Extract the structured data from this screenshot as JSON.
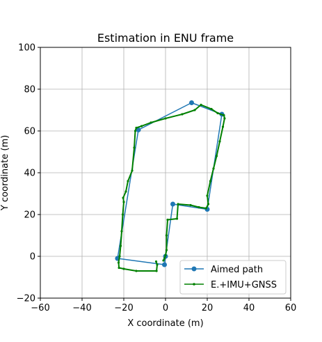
{
  "chart_data": {
    "type": "line",
    "title": "Estimation in ENU frame",
    "xlabel": "X coordinate (m)",
    "ylabel": "Y coordinate (m)",
    "xlim": [
      -60,
      60
    ],
    "ylim": [
      -20,
      100
    ],
    "xticks": [
      "−60",
      "−40",
      "−20",
      "0",
      "20",
      "40",
      "60"
    ],
    "yticks": [
      "−20",
      "0",
      "20",
      "40",
      "60",
      "80",
      "100"
    ],
    "xtick_values": [
      -60,
      -40,
      -20,
      0,
      20,
      40,
      60
    ],
    "ytick_values": [
      -20,
      0,
      20,
      40,
      60,
      80,
      100
    ],
    "grid": true,
    "legend_position": "lower-right",
    "series": [
      {
        "name": "Aimed path",
        "color": "#1f77b4",
        "marker": "circle",
        "points": [
          [
            -23,
            -1
          ],
          [
            -13,
            60.5
          ],
          [
            12.5,
            73.5
          ],
          [
            27,
            68
          ],
          [
            20,
            22.5
          ],
          [
            3.5,
            25
          ],
          [
            0,
            0
          ],
          [
            -0.5,
            -4
          ],
          [
            -23,
            -1
          ]
        ]
      },
      {
        "name": "E.+IMU+GNSS",
        "color": "#008000",
        "marker": "dot",
        "points": [
          [
            -4.5,
            -2.5
          ],
          [
            -4,
            -4
          ],
          [
            -4.3,
            -7
          ],
          [
            -14,
            -7
          ],
          [
            -20,
            -6
          ],
          [
            -22.3,
            -5.5
          ],
          [
            -22.5,
            -3
          ],
          [
            -22,
            0
          ],
          [
            -21.5,
            5
          ],
          [
            -21,
            12
          ],
          [
            -20.5,
            20
          ],
          [
            -20,
            26
          ],
          [
            -20.3,
            28
          ],
          [
            -19,
            31
          ],
          [
            -18,
            36
          ],
          [
            -16,
            41
          ],
          [
            -15,
            52
          ],
          [
            -14.5,
            60
          ],
          [
            -14,
            61.5
          ],
          [
            -11.5,
            62.3
          ],
          [
            -7,
            64
          ],
          [
            0,
            66
          ],
          [
            8,
            68
          ],
          [
            14,
            70
          ],
          [
            17,
            72.5
          ],
          [
            22,
            70.5
          ],
          [
            25,
            68.5
          ],
          [
            28,
            67.5
          ],
          [
            28.3,
            66
          ],
          [
            27.5,
            62
          ],
          [
            26,
            55
          ],
          [
            24.5,
            48
          ],
          [
            23,
            42
          ],
          [
            21.5,
            36
          ],
          [
            20,
            29
          ],
          [
            20.5,
            25
          ],
          [
            19.5,
            23
          ],
          [
            16,
            23.5
          ],
          [
            12,
            24.5
          ],
          [
            6,
            25
          ],
          [
            5.5,
            18
          ],
          [
            1,
            17.5
          ],
          [
            0.5,
            10
          ],
          [
            0.5,
            3
          ],
          [
            0,
            0.5
          ],
          [
            -0.5,
            -1
          ],
          [
            -1,
            -2
          ]
        ]
      }
    ]
  }
}
